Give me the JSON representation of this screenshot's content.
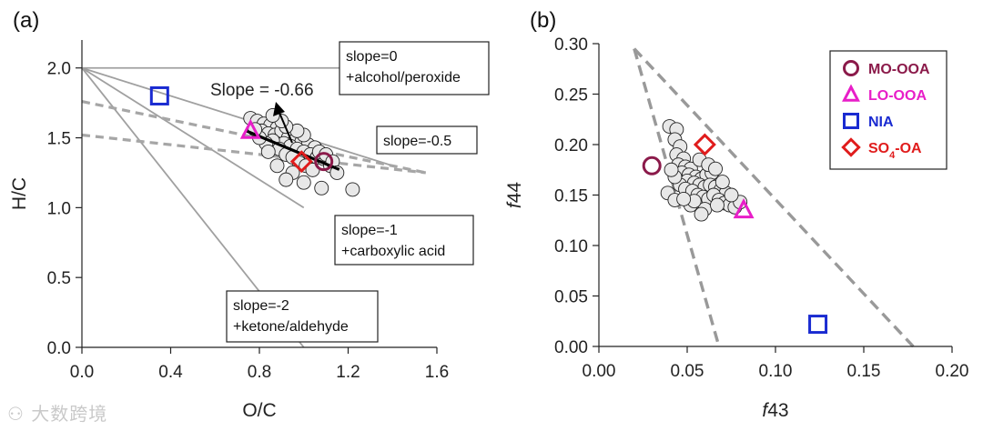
{
  "chart_data": [
    {
      "panel_label": "(a)",
      "type": "scatter",
      "xlabel": "O/C",
      "ylabel": "H/C",
      "xlim": [
        0,
        1.6
      ],
      "ylim": [
        0,
        2.2
      ],
      "xticks": [
        "0.0",
        "0.4",
        "0.8",
        "1.2",
        "1.6"
      ],
      "xtick_values": [
        0,
        0.4,
        0.8,
        1.2,
        1.6
      ],
      "yticks": [
        "0.0",
        "0.5",
        "1.0",
        "1.5",
        "2.0"
      ],
      "ytick_values": [
        0,
        0.5,
        1.0,
        1.5,
        2.0
      ],
      "reference_lines": [
        {
          "name": "slope=0",
          "slope": 0,
          "intercept": 2.0,
          "x_end": 1.55
        },
        {
          "name": "slope=-0.5",
          "slope": -0.5,
          "intercept": 2.0,
          "x_end": 1.4
        },
        {
          "name": "slope=-1",
          "slope": -1,
          "intercept": 2.0,
          "x_end": 1.0
        },
        {
          "name": "slope=-2",
          "slope": -2,
          "intercept": 2.0,
          "x_end": 1.0
        }
      ],
      "dashed_lines": [
        {
          "name": "upper dashed",
          "x0": 0,
          "y0": 1.76,
          "x1": 1.55,
          "y1": 1.25
        },
        {
          "name": "lower dashed",
          "x0": 0,
          "y0": 1.52,
          "x1": 1.55,
          "y1": 1.25
        }
      ],
      "fit_line": {
        "label": "Slope = -0.66",
        "slope": -0.66,
        "x0": 0.74,
        "x1": 1.16
      },
      "boxes": [
        {
          "lines": [
            "slope=0",
            "+alcohol/peroxide"
          ]
        },
        {
          "lines": [
            "slope=-0.5"
          ]
        },
        {
          "lines": [
            "slope=-1",
            "+carboxylic acid"
          ]
        },
        {
          "lines": [
            "slope=-2",
            "+ketone/aldehyde"
          ]
        }
      ],
      "markers": [
        {
          "name": "MO-OOA",
          "x": 1.09,
          "y": 1.33,
          "shape": "circle",
          "color": "#8b1a4a"
        },
        {
          "name": "LO-OOA",
          "x": 0.76,
          "y": 1.55,
          "shape": "triangle",
          "color": "#e81ec8"
        },
        {
          "name": "NIA",
          "x": 0.35,
          "y": 1.8,
          "shape": "square",
          "color": "#1a2bd1"
        },
        {
          "name": "SO4-OA",
          "x": 0.99,
          "y": 1.33,
          "shape": "diamond",
          "color": "#e01c1c"
        }
      ],
      "cluster": {
        "points": [
          [
            0.76,
            1.64
          ],
          [
            0.79,
            1.62
          ],
          [
            0.82,
            1.6
          ],
          [
            0.85,
            1.59
          ],
          [
            0.88,
            1.57
          ],
          [
            0.81,
            1.55
          ],
          [
            0.84,
            1.53
          ],
          [
            0.87,
            1.52
          ],
          [
            0.9,
            1.55
          ],
          [
            0.93,
            1.5
          ],
          [
            0.96,
            1.48
          ],
          [
            0.99,
            1.47
          ],
          [
            1.02,
            1.45
          ],
          [
            1.05,
            1.43
          ],
          [
            0.91,
            1.46
          ],
          [
            0.94,
            1.44
          ],
          [
            0.97,
            1.42
          ],
          [
            1.0,
            1.4
          ],
          [
            1.03,
            1.38
          ],
          [
            1.06,
            1.36
          ],
          [
            1.09,
            1.35
          ],
          [
            1.12,
            1.3
          ],
          [
            0.86,
            1.48
          ],
          [
            0.89,
            1.42
          ],
          [
            0.92,
            1.38
          ],
          [
            0.95,
            1.36
          ],
          [
            0.98,
            1.32
          ],
          [
            1.01,
            1.3
          ],
          [
            1.04,
            1.27
          ],
          [
            0.83,
            1.46
          ],
          [
            0.8,
            1.5
          ],
          [
            1.07,
            1.4
          ],
          [
            1.1,
            1.38
          ],
          [
            1.0,
            1.52
          ],
          [
            0.97,
            1.55
          ],
          [
            0.92,
            1.58
          ],
          [
            0.78,
            1.56
          ],
          [
            1.13,
            1.33
          ],
          [
            0.95,
            1.25
          ],
          [
            0.88,
            1.3
          ],
          [
            0.92,
            1.2
          ],
          [
            1.0,
            1.18
          ],
          [
            1.08,
            1.14
          ],
          [
            1.22,
            1.13
          ],
          [
            1.15,
            1.25
          ],
          [
            0.84,
            1.4
          ],
          [
            0.9,
            1.62
          ],
          [
            0.86,
            1.66
          ]
        ],
        "color": "#e8e8e8"
      }
    },
    {
      "panel_label": "(b)",
      "type": "scatter",
      "xlabel": "f43",
      "ylabel": "f44",
      "xlim": [
        0,
        0.2
      ],
      "ylim": [
        0,
        0.3
      ],
      "xticks": [
        "0.00",
        "0.05",
        "0.10",
        "0.15",
        "0.20"
      ],
      "xtick_values": [
        0,
        0.05,
        0.1,
        0.15,
        0.2
      ],
      "yticks": [
        "0.00",
        "0.05",
        "0.10",
        "0.15",
        "0.20",
        "0.25",
        "0.30"
      ],
      "ytick_values": [
        0,
        0.05,
        0.1,
        0.15,
        0.2,
        0.25,
        0.3
      ],
      "triangle": [
        {
          "x0": 0.02,
          "y0": 0.295,
          "x1": 0.068,
          "y1": 0.0
        },
        {
          "x0": 0.02,
          "y0": 0.295,
          "x1": 0.178,
          "y1": 0.0
        }
      ],
      "markers": [
        {
          "name": "MO-OOA",
          "x": 0.03,
          "y": 0.179,
          "shape": "circle",
          "color": "#8b1a4a"
        },
        {
          "name": "LO-OOA",
          "x": 0.082,
          "y": 0.135,
          "shape": "triangle",
          "color": "#e81ec8"
        },
        {
          "name": "NIA",
          "x": 0.124,
          "y": 0.022,
          "shape": "square",
          "color": "#1a2bd1"
        },
        {
          "name": "SO4-OA",
          "x": 0.06,
          "y": 0.2,
          "shape": "diamond",
          "color": "#e01c1c"
        }
      ],
      "cluster": {
        "points": [
          [
            0.04,
            0.218
          ],
          [
            0.044,
            0.215
          ],
          [
            0.043,
            0.205
          ],
          [
            0.046,
            0.198
          ],
          [
            0.044,
            0.19
          ],
          [
            0.048,
            0.186
          ],
          [
            0.045,
            0.18
          ],
          [
            0.049,
            0.178
          ],
          [
            0.052,
            0.176
          ],
          [
            0.047,
            0.172
          ],
          [
            0.051,
            0.17
          ],
          [
            0.055,
            0.168
          ],
          [
            0.058,
            0.166
          ],
          [
            0.061,
            0.17
          ],
          [
            0.064,
            0.172
          ],
          [
            0.05,
            0.164
          ],
          [
            0.054,
            0.162
          ],
          [
            0.057,
            0.16
          ],
          [
            0.06,
            0.158
          ],
          [
            0.063,
            0.16
          ],
          [
            0.066,
            0.158
          ],
          [
            0.069,
            0.155
          ],
          [
            0.072,
            0.152
          ],
          [
            0.046,
            0.16
          ],
          [
            0.049,
            0.156
          ],
          [
            0.053,
            0.154
          ],
          [
            0.056,
            0.15
          ],
          [
            0.059,
            0.148
          ],
          [
            0.062,
            0.146
          ],
          [
            0.065,
            0.15
          ],
          [
            0.068,
            0.145
          ],
          [
            0.071,
            0.142
          ],
          [
            0.074,
            0.14
          ],
          [
            0.077,
            0.138
          ],
          [
            0.08,
            0.143
          ],
          [
            0.043,
            0.168
          ],
          [
            0.041,
            0.175
          ],
          [
            0.039,
            0.152
          ],
          [
            0.043,
            0.145
          ],
          [
            0.052,
            0.14
          ],
          [
            0.06,
            0.136
          ],
          [
            0.058,
            0.131
          ],
          [
            0.07,
            0.163
          ],
          [
            0.075,
            0.15
          ],
          [
            0.067,
            0.14
          ],
          [
            0.057,
            0.185
          ],
          [
            0.062,
            0.18
          ],
          [
            0.066,
            0.176
          ],
          [
            0.054,
            0.144
          ],
          [
            0.048,
            0.146
          ]
        ],
        "color": "#e8e8e8"
      },
      "legend": {
        "position": "top-right",
        "entries": [
          {
            "label_main": "MO-OOA",
            "label_sub": "",
            "label_tail": "",
            "shape": "circle",
            "color": "#8b1a4a",
            "text_color": "#8b1a4a"
          },
          {
            "label_main": "LO-OOA",
            "label_sub": "",
            "label_tail": "",
            "shape": "triangle",
            "color": "#e81ec8",
            "text_color": "#e81ec8"
          },
          {
            "label_main": "NIA",
            "label_sub": "",
            "label_tail": "",
            "shape": "square",
            "color": "#1a2bd1",
            "text_color": "#1a2bd1"
          },
          {
            "label_main": "SO",
            "label_sub": "4",
            "label_tail": "-OA",
            "shape": "diamond",
            "color": "#e01c1c",
            "text_color": "#e01c1c"
          }
        ]
      }
    }
  ],
  "watermark": "大数跨境"
}
